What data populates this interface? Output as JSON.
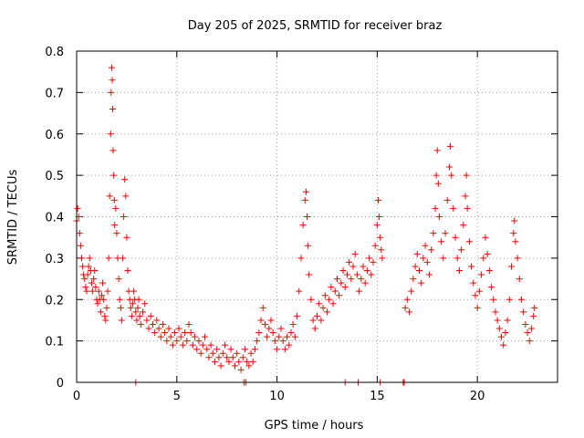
{
  "chart_data": {
    "type": "scatter",
    "title": "Day 205 of 2025, SRMTID for receiver braz",
    "xlabel": "GPS time / hours",
    "ylabel": "SRMTID / TECUs",
    "xlim": [
      0,
      24
    ],
    "ylim": [
      0,
      0.8
    ],
    "xticks": [
      0,
      5,
      10,
      15,
      20
    ],
    "yticks": [
      0,
      0.1,
      0.2,
      0.3,
      0.4,
      0.5,
      0.6,
      0.7,
      0.8
    ],
    "xtick_labels": [
      "0",
      "5",
      "10",
      "15",
      "20"
    ],
    "ytick_labels": [
      "0",
      "0.1",
      "0.2",
      "0.3",
      "0.4",
      "0.5",
      "0.6",
      "0.7",
      "0.8"
    ],
    "grid": true,
    "marker": "+",
    "series": [
      {
        "name": "SRMTID",
        "color": "#ff0000",
        "points": [
          [
            0.0,
            0.39
          ],
          [
            0.05,
            0.42
          ],
          [
            0.1,
            0.4
          ],
          [
            0.15,
            0.36
          ],
          [
            0.2,
            0.33
          ],
          [
            0.25,
            0.3
          ],
          [
            0.3,
            0.28
          ],
          [
            0.35,
            0.26
          ],
          [
            0.4,
            0.25
          ],
          [
            0.45,
            0.23
          ],
          [
            0.5,
            0.22
          ],
          [
            0.55,
            0.26
          ],
          [
            0.6,
            0.28
          ],
          [
            0.65,
            0.3
          ],
          [
            0.7,
            0.27
          ],
          [
            0.75,
            0.24
          ],
          [
            0.8,
            0.22
          ],
          [
            0.85,
            0.25
          ],
          [
            0.9,
            0.27
          ],
          [
            0.95,
            0.23
          ],
          [
            1.0,
            0.2
          ],
          [
            1.05,
            0.19
          ],
          [
            1.1,
            0.22
          ],
          [
            1.15,
            0.2
          ],
          [
            1.2,
            0.17
          ],
          [
            1.25,
            0.21
          ],
          [
            1.3,
            0.24
          ],
          [
            1.35,
            0.2
          ],
          [
            1.4,
            0.16
          ],
          [
            1.45,
            0.15
          ],
          [
            1.5,
            0.18
          ],
          [
            1.55,
            0.22
          ],
          [
            1.6,
            0.3
          ],
          [
            1.65,
            0.45
          ],
          [
            1.7,
            0.6
          ],
          [
            1.72,
            0.7
          ],
          [
            1.75,
            0.76
          ],
          [
            1.78,
            0.73
          ],
          [
            1.8,
            0.66
          ],
          [
            1.82,
            0.56
          ],
          [
            1.85,
            0.5
          ],
          [
            1.88,
            0.44
          ],
          [
            1.9,
            0.38
          ],
          [
            1.95,
            0.42
          ],
          [
            2.0,
            0.36
          ],
          [
            2.05,
            0.3
          ],
          [
            2.1,
            0.25
          ],
          [
            2.15,
            0.2
          ],
          [
            2.2,
            0.18
          ],
          [
            2.25,
            0.15
          ],
          [
            2.3,
            0.3
          ],
          [
            2.35,
            0.4
          ],
          [
            2.4,
            0.49
          ],
          [
            2.45,
            0.45
          ],
          [
            2.5,
            0.35
          ],
          [
            2.55,
            0.27
          ],
          [
            2.6,
            0.22
          ],
          [
            2.65,
            0.2
          ],
          [
            2.7,
            0.18
          ],
          [
            2.75,
            0.16
          ],
          [
            2.8,
            0.19
          ],
          [
            2.85,
            0.22
          ],
          [
            2.9,
            0.2
          ],
          [
            2.95,
            0.17
          ],
          [
            3.0,
            0.15
          ],
          [
            3.05,
            0.18
          ],
          [
            3.1,
            0.2
          ],
          [
            3.15,
            0.16
          ],
          [
            3.2,
            0.14
          ],
          [
            3.3,
            0.17
          ],
          [
            3.4,
            0.19
          ],
          [
            3.5,
            0.15
          ],
          [
            3.6,
            0.13
          ],
          [
            3.7,
            0.16
          ],
          [
            3.8,
            0.14
          ],
          [
            3.9,
            0.12
          ],
          [
            4.0,
            0.15
          ],
          [
            4.1,
            0.13
          ],
          [
            4.2,
            0.11
          ],
          [
            4.3,
            0.14
          ],
          [
            4.4,
            0.12
          ],
          [
            4.5,
            0.1
          ],
          [
            4.6,
            0.13
          ],
          [
            4.7,
            0.11
          ],
          [
            4.8,
            0.09
          ],
          [
            4.9,
            0.12
          ],
          [
            5.0,
            0.1
          ],
          [
            5.1,
            0.13
          ],
          [
            5.2,
            0.11
          ],
          [
            5.3,
            0.09
          ],
          [
            5.4,
            0.12
          ],
          [
            5.5,
            0.1
          ],
          [
            5.6,
            0.14
          ],
          [
            5.7,
            0.12
          ],
          [
            5.8,
            0.09
          ],
          [
            5.9,
            0.11
          ],
          [
            6.0,
            0.08
          ],
          [
            6.1,
            0.1
          ],
          [
            6.2,
            0.07
          ],
          [
            6.3,
            0.09
          ],
          [
            6.4,
            0.11
          ],
          [
            6.5,
            0.08
          ],
          [
            6.6,
            0.06
          ],
          [
            6.7,
            0.09
          ],
          [
            6.8,
            0.07
          ],
          [
            6.9,
            0.05
          ],
          [
            7.0,
            0.08
          ],
          [
            7.1,
            0.06
          ],
          [
            7.2,
            0.04
          ],
          [
            7.3,
            0.07
          ],
          [
            7.4,
            0.09
          ],
          [
            7.5,
            0.06
          ],
          [
            7.6,
            0.05
          ],
          [
            7.7,
            0.08
          ],
          [
            7.8,
            0.06
          ],
          [
            7.9,
            0.04
          ],
          [
            8.0,
            0.07
          ],
          [
            8.1,
            0.05
          ],
          [
            8.2,
            0.03
          ],
          [
            8.3,
            0.06
          ],
          [
            8.4,
            0.08
          ],
          [
            8.5,
            0.05
          ],
          [
            8.6,
            0.04
          ],
          [
            8.7,
            0.07
          ],
          [
            8.8,
            0.05
          ],
          [
            8.9,
            0.08
          ],
          [
            9.0,
            0.1
          ],
          [
            9.1,
            0.12
          ],
          [
            9.2,
            0.15
          ],
          [
            9.3,
            0.18
          ],
          [
            9.4,
            0.14
          ],
          [
            9.5,
            0.11
          ],
          [
            9.6,
            0.13
          ],
          [
            9.7,
            0.15
          ],
          [
            9.8,
            0.12
          ],
          [
            9.9,
            0.1
          ],
          [
            10.0,
            0.08
          ],
          [
            10.1,
            0.11
          ],
          [
            10.2,
            0.13
          ],
          [
            10.3,
            0.1
          ],
          [
            10.4,
            0.08
          ],
          [
            10.5,
            0.11
          ],
          [
            10.6,
            0.09
          ],
          [
            10.7,
            0.12
          ],
          [
            10.8,
            0.14
          ],
          [
            10.9,
            0.11
          ],
          [
            11.0,
            0.16
          ],
          [
            11.1,
            0.22
          ],
          [
            11.2,
            0.3
          ],
          [
            11.3,
            0.38
          ],
          [
            11.4,
            0.44
          ],
          [
            11.45,
            0.46
          ],
          [
            11.5,
            0.4
          ],
          [
            11.55,
            0.33
          ],
          [
            11.6,
            0.26
          ],
          [
            11.7,
            0.2
          ],
          [
            11.8,
            0.15
          ],
          [
            11.9,
            0.13
          ],
          [
            12.0,
            0.16
          ],
          [
            12.1,
            0.19
          ],
          [
            12.2,
            0.15
          ],
          [
            12.3,
            0.18
          ],
          [
            12.4,
            0.21
          ],
          [
            12.5,
            0.17
          ],
          [
            12.6,
            0.2
          ],
          [
            12.7,
            0.23
          ],
          [
            12.8,
            0.19
          ],
          [
            12.9,
            0.22
          ],
          [
            13.0,
            0.25
          ],
          [
            13.1,
            0.21
          ],
          [
            13.2,
            0.24
          ],
          [
            13.3,
            0.27
          ],
          [
            13.4,
            0.23
          ],
          [
            13.5,
            0.26
          ],
          [
            13.6,
            0.29
          ],
          [
            13.7,
            0.25
          ],
          [
            13.8,
            0.28
          ],
          [
            13.9,
            0.31
          ],
          [
            14.0,
            0.26
          ],
          [
            14.1,
            0.22
          ],
          [
            14.2,
            0.25
          ],
          [
            14.3,
            0.28
          ],
          [
            14.4,
            0.24
          ],
          [
            14.5,
            0.27
          ],
          [
            14.6,
            0.3
          ],
          [
            14.7,
            0.26
          ],
          [
            14.8,
            0.29
          ],
          [
            14.9,
            0.33
          ],
          [
            15.0,
            0.38
          ],
          [
            15.05,
            0.44
          ],
          [
            15.1,
            0.4
          ],
          [
            15.15,
            0.35
          ],
          [
            15.2,
            0.32
          ],
          [
            15.25,
            0.3
          ],
          [
            16.4,
            0.18
          ],
          [
            16.5,
            0.2
          ],
          [
            16.6,
            0.17
          ],
          [
            16.7,
            0.22
          ],
          [
            16.8,
            0.25
          ],
          [
            16.9,
            0.28
          ],
          [
            17.0,
            0.31
          ],
          [
            17.1,
            0.27
          ],
          [
            17.2,
            0.24
          ],
          [
            17.3,
            0.3
          ],
          [
            17.4,
            0.33
          ],
          [
            17.5,
            0.29
          ],
          [
            17.6,
            0.26
          ],
          [
            17.7,
            0.32
          ],
          [
            17.8,
            0.36
          ],
          [
            17.9,
            0.42
          ],
          [
            17.95,
            0.5
          ],
          [
            18.0,
            0.56
          ],
          [
            18.05,
            0.48
          ],
          [
            18.1,
            0.4
          ],
          [
            18.2,
            0.34
          ],
          [
            18.3,
            0.3
          ],
          [
            18.4,
            0.36
          ],
          [
            18.5,
            0.44
          ],
          [
            18.6,
            0.52
          ],
          [
            18.65,
            0.57
          ],
          [
            18.7,
            0.5
          ],
          [
            18.8,
            0.42
          ],
          [
            18.9,
            0.35
          ],
          [
            19.0,
            0.3
          ],
          [
            19.1,
            0.27
          ],
          [
            19.2,
            0.32
          ],
          [
            19.3,
            0.38
          ],
          [
            19.4,
            0.45
          ],
          [
            19.45,
            0.5
          ],
          [
            19.5,
            0.42
          ],
          [
            19.6,
            0.34
          ],
          [
            19.7,
            0.28
          ],
          [
            19.8,
            0.24
          ],
          [
            19.9,
            0.21
          ],
          [
            20.0,
            0.18
          ],
          [
            20.1,
            0.22
          ],
          [
            20.2,
            0.26
          ],
          [
            20.3,
            0.3
          ],
          [
            20.4,
            0.35
          ],
          [
            20.5,
            0.31
          ],
          [
            20.6,
            0.27
          ],
          [
            20.7,
            0.23
          ],
          [
            20.8,
            0.2
          ],
          [
            20.9,
            0.17
          ],
          [
            21.0,
            0.15
          ],
          [
            21.1,
            0.13
          ],
          [
            21.2,
            0.11
          ],
          [
            21.3,
            0.09
          ],
          [
            21.4,
            0.12
          ],
          [
            21.5,
            0.15
          ],
          [
            21.6,
            0.2
          ],
          [
            21.7,
            0.28
          ],
          [
            21.8,
            0.36
          ],
          [
            21.85,
            0.39
          ],
          [
            21.9,
            0.34
          ],
          [
            22.0,
            0.3
          ],
          [
            22.1,
            0.25
          ],
          [
            22.2,
            0.2
          ],
          [
            22.3,
            0.17
          ],
          [
            22.4,
            0.14
          ],
          [
            22.5,
            0.12
          ],
          [
            22.6,
            0.1
          ],
          [
            22.7,
            0.13
          ],
          [
            22.8,
            0.16
          ],
          [
            22.85,
            0.18
          ],
          [
            2.95,
            0.0
          ],
          [
            8.35,
            0.0
          ],
          [
            8.45,
            0.0
          ],
          [
            13.4,
            0.0
          ],
          [
            14.05,
            0.0
          ],
          [
            15.15,
            0.0
          ],
          [
            16.3,
            0.0
          ],
          [
            16.35,
            0.0
          ]
        ]
      }
    ]
  }
}
